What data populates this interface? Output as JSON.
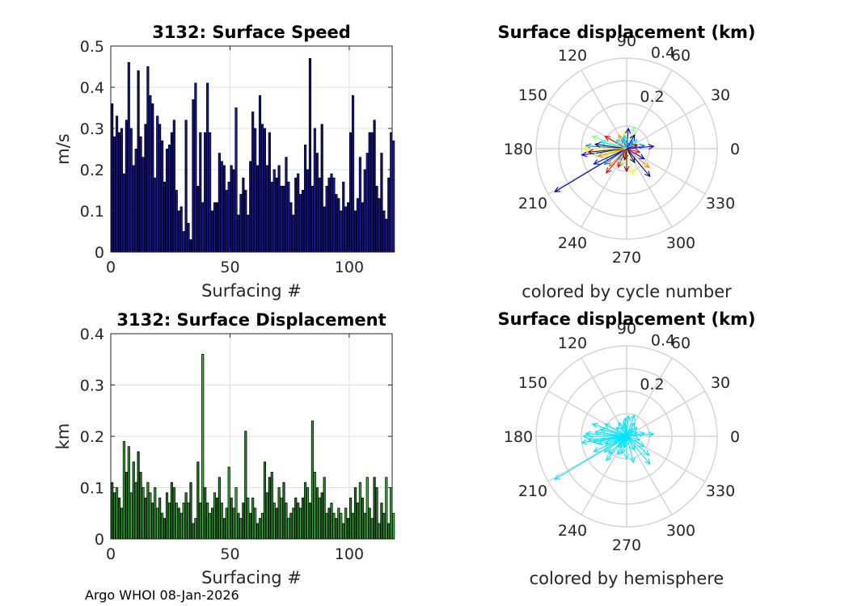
{
  "chart_data": [
    {
      "type": "bar",
      "title": "3132: Surface Speed",
      "xlabel": "Surfacing #",
      "ylabel": "m/s",
      "xlim": [
        0,
        118
      ],
      "ylim": [
        0,
        0.5
      ],
      "xticks": [
        0,
        50,
        100
      ],
      "yticks": [
        0,
        0.1,
        0.2,
        0.3,
        0.4,
        0.5
      ],
      "grid": true,
      "bar_color": "#1a1acc",
      "values": [
        0.36,
        0.28,
        0.33,
        0.29,
        0.3,
        0.19,
        0.32,
        0.46,
        0.3,
        0.21,
        0.25,
        0.44,
        0.28,
        0.23,
        0.31,
        0.45,
        0.38,
        0.36,
        0.18,
        0.33,
        0.31,
        0.27,
        0.17,
        0.25,
        0.26,
        0.29,
        0.32,
        0.15,
        0.1,
        0.11,
        0.05,
        0.32,
        0.07,
        0.03,
        0.37,
        0.41,
        0.16,
        0.29,
        0.12,
        0.29,
        0.41,
        0.29,
        0.1,
        0.12,
        0.12,
        0.24,
        0.22,
        0.21,
        0.15,
        0.17,
        0.21,
        0.2,
        0.35,
        0.09,
        0.14,
        0.18,
        0.15,
        0.09,
        0.22,
        0.34,
        0.3,
        0.21,
        0.38,
        0.31,
        0.3,
        0.21,
        0.29,
        0.17,
        0.2,
        0.18,
        0.21,
        0.16,
        0.16,
        0.23,
        0.17,
        0.12,
        0.09,
        0.18,
        0.19,
        0.14,
        0.15,
        0.26,
        0.2,
        0.47,
        0.16,
        0.3,
        0.24,
        0.18,
        0.31,
        0.11,
        0.16,
        0.18,
        0.19,
        0.18,
        0.14,
        0.13,
        0.1,
        0.17,
        0.11,
        0.12,
        0.29,
        0.38,
        0.1,
        0.13,
        0.23,
        0.12,
        0.2,
        0.24,
        0.29,
        0.29,
        0.32,
        0.16,
        0.13,
        0.24,
        0.1,
        0.08,
        0.18,
        0.29,
        0.27
      ]
    },
    {
      "type": "polar-quiver",
      "title": "Surface displacement (km)",
      "caption": "colored by cycle number",
      "r_max": 0.4,
      "r_ticks": [
        "0.2",
        "0.4"
      ],
      "angle_labels": [
        "0",
        "30",
        "60",
        "90",
        "120",
        "150",
        "180",
        "210",
        "240",
        "270",
        "300",
        "330"
      ],
      "color_scale": [
        "#00008b",
        "#0000ff",
        "#0080ff",
        "#00e5ff",
        "#7fff7f",
        "#ffff00",
        "#ff8c00",
        "#ff0000",
        "#8b0000"
      ],
      "vectors": [
        {
          "angle": 211,
          "r": 0.37
        },
        {
          "angle": 188,
          "r": 0.2
        },
        {
          "angle": 176,
          "r": 0.18
        },
        {
          "angle": 165,
          "r": 0.12
        },
        {
          "angle": 190,
          "r": 0.15
        },
        {
          "angle": 200,
          "r": 0.1
        },
        {
          "angle": 225,
          "r": 0.11
        },
        {
          "angle": 245,
          "r": 0.09
        },
        {
          "angle": 270,
          "r": 0.1
        },
        {
          "angle": 300,
          "r": 0.07
        },
        {
          "angle": 330,
          "r": 0.09
        },
        {
          "angle": 10,
          "r": 0.08
        },
        {
          "angle": 40,
          "r": 0.06
        },
        {
          "angle": 70,
          "r": 0.1
        },
        {
          "angle": 95,
          "r": 0.08
        },
        {
          "angle": 120,
          "r": 0.07
        },
        {
          "angle": 150,
          "r": 0.11
        },
        {
          "angle": 185,
          "r": 0.17
        },
        {
          "angle": 172,
          "r": 0.14
        },
        {
          "angle": 205,
          "r": 0.16
        },
        {
          "angle": 215,
          "r": 0.12
        },
        {
          "angle": 235,
          "r": 0.06
        },
        {
          "angle": 255,
          "r": 0.08
        },
        {
          "angle": 285,
          "r": 0.12
        },
        {
          "angle": 320,
          "r": 0.13
        },
        {
          "angle": 345,
          "r": 0.06
        },
        {
          "angle": 20,
          "r": 0.05
        },
        {
          "angle": 60,
          "r": 0.07
        },
        {
          "angle": 85,
          "r": 0.09
        },
        {
          "angle": 110,
          "r": 0.05
        },
        {
          "angle": 140,
          "r": 0.06
        },
        {
          "angle": 160,
          "r": 0.16
        },
        {
          "angle": 180,
          "r": 0.19
        },
        {
          "angle": 195,
          "r": 0.13
        },
        {
          "angle": 230,
          "r": 0.14
        },
        {
          "angle": 260,
          "r": 0.05
        },
        {
          "angle": 310,
          "r": 0.16
        },
        {
          "angle": 5,
          "r": 0.12
        },
        {
          "angle": 50,
          "r": 0.04
        },
        {
          "angle": 100,
          "r": 0.06
        }
      ]
    },
    {
      "type": "bar",
      "title": "3132: Surface Displacement",
      "xlabel": "Surfacing #",
      "ylabel": "km",
      "xlim": [
        0,
        118
      ],
      "ylim": [
        0,
        0.4
      ],
      "xticks": [
        0,
        50,
        100
      ],
      "yticks": [
        0,
        0.1,
        0.2,
        0.3,
        0.4
      ],
      "grid": true,
      "bar_color": "#2ecc2e",
      "values": [
        0.11,
        0.09,
        0.1,
        0.08,
        0.06,
        0.19,
        0.13,
        0.18,
        0.09,
        0.15,
        0.11,
        0.17,
        0.13,
        0.1,
        0.08,
        0.11,
        0.09,
        0.07,
        0.1,
        0.06,
        0.08,
        0.05,
        0.04,
        0.09,
        0.07,
        0.11,
        0.1,
        0.07,
        0.06,
        0.05,
        0.07,
        0.09,
        0.07,
        0.11,
        0.03,
        0.04,
        0.15,
        0.07,
        0.36,
        0.1,
        0.07,
        0.05,
        0.06,
        0.09,
        0.08,
        0.12,
        0.07,
        0.04,
        0.06,
        0.14,
        0.08,
        0.06,
        0.1,
        0.05,
        0.04,
        0.07,
        0.21,
        0.08,
        0.05,
        0.08,
        0.06,
        0.03,
        0.04,
        0.05,
        0.15,
        0.09,
        0.12,
        0.13,
        0.07,
        0.06,
        0.1,
        0.08,
        0.11,
        0.07,
        0.04,
        0.05,
        0.06,
        0.08,
        0.07,
        0.06,
        0.08,
        0.11,
        0.1,
        0.07,
        0.23,
        0.13,
        0.1,
        0.08,
        0.09,
        0.12,
        0.05,
        0.06,
        0.07,
        0.05,
        0.04,
        0.06,
        0.05,
        0.03,
        0.06,
        0.04,
        0.08,
        0.05,
        0.1,
        0.07,
        0.11,
        0.08,
        0.05,
        0.12,
        0.06,
        0.04,
        0.12,
        0.1,
        0.03,
        0.07,
        0.05,
        0.12,
        0.03,
        0.1,
        0.05
      ]
    },
    {
      "type": "polar-quiver",
      "title": "Surface displacement (km)",
      "caption": "colored by hemisphere",
      "r_max": 0.4,
      "r_ticks": [
        "0.2",
        "0.4"
      ],
      "angle_labels": [
        "0",
        "30",
        "60",
        "90",
        "120",
        "150",
        "180",
        "210",
        "240",
        "270",
        "300",
        "330"
      ],
      "arrow_color": "#00e5ff",
      "vectors": [
        {
          "angle": 211,
          "r": 0.37
        },
        {
          "angle": 188,
          "r": 0.2
        },
        {
          "angle": 176,
          "r": 0.18
        },
        {
          "angle": 165,
          "r": 0.12
        },
        {
          "angle": 190,
          "r": 0.15
        },
        {
          "angle": 200,
          "r": 0.1
        },
        {
          "angle": 225,
          "r": 0.11
        },
        {
          "angle": 245,
          "r": 0.09
        },
        {
          "angle": 270,
          "r": 0.1
        },
        {
          "angle": 300,
          "r": 0.07
        },
        {
          "angle": 330,
          "r": 0.09
        },
        {
          "angle": 10,
          "r": 0.08
        },
        {
          "angle": 40,
          "r": 0.06
        },
        {
          "angle": 70,
          "r": 0.1
        },
        {
          "angle": 95,
          "r": 0.08
        },
        {
          "angle": 120,
          "r": 0.07
        },
        {
          "angle": 150,
          "r": 0.11
        },
        {
          "angle": 185,
          "r": 0.17
        },
        {
          "angle": 172,
          "r": 0.14
        },
        {
          "angle": 205,
          "r": 0.16
        },
        {
          "angle": 215,
          "r": 0.12
        },
        {
          "angle": 235,
          "r": 0.06
        },
        {
          "angle": 255,
          "r": 0.08
        },
        {
          "angle": 285,
          "r": 0.12
        },
        {
          "angle": 320,
          "r": 0.13
        },
        {
          "angle": 345,
          "r": 0.06
        },
        {
          "angle": 20,
          "r": 0.05
        },
        {
          "angle": 60,
          "r": 0.07
        },
        {
          "angle": 85,
          "r": 0.09
        },
        {
          "angle": 110,
          "r": 0.05
        },
        {
          "angle": 140,
          "r": 0.06
        },
        {
          "angle": 160,
          "r": 0.16
        },
        {
          "angle": 180,
          "r": 0.19
        },
        {
          "angle": 195,
          "r": 0.13
        },
        {
          "angle": 230,
          "r": 0.14
        },
        {
          "angle": 260,
          "r": 0.05
        },
        {
          "angle": 310,
          "r": 0.16
        },
        {
          "angle": 5,
          "r": 0.12
        },
        {
          "angle": 50,
          "r": 0.04
        },
        {
          "angle": 100,
          "r": 0.06
        }
      ]
    }
  ],
  "footer": "Argo WHOI 08-Jan-2026"
}
